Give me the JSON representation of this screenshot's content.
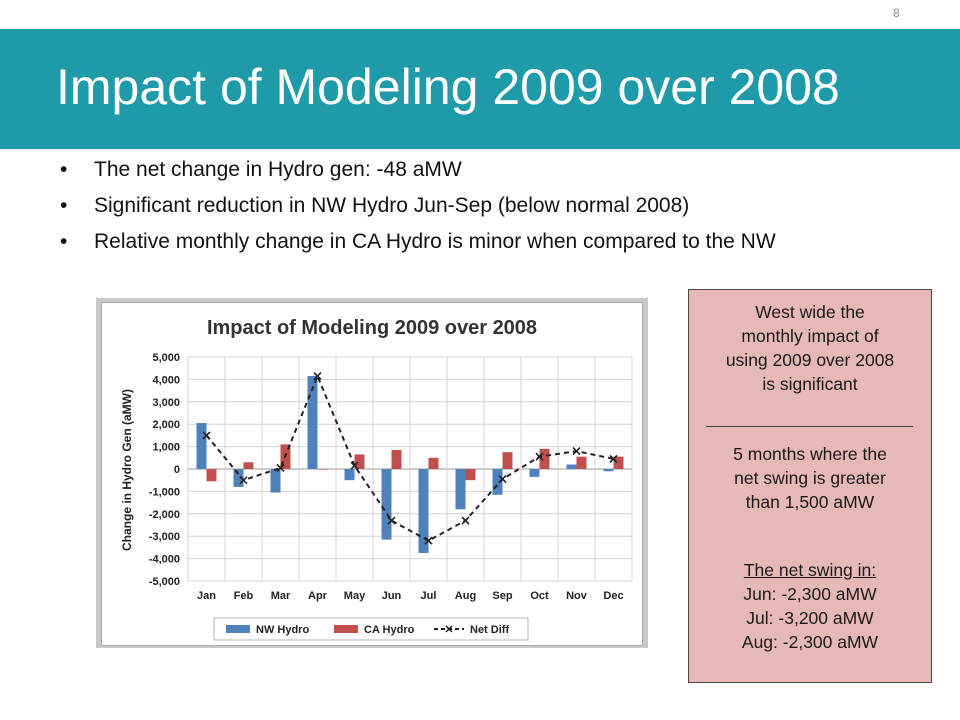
{
  "slide": {
    "page_number": "8",
    "title": "Impact of Modeling 2009 over 2008",
    "bullets": [
      "The net change in Hydro gen: -48 aMW",
      "Significant reduction in NW Hydro Jun-Sep (below normal 2008)",
      "Relative monthly change in CA Hydro is minor when compared to the NW"
    ]
  },
  "note": {
    "paragraph1": [
      "West wide the",
      "monthly impact of",
      "using 2009 over 2008",
      "is significant"
    ],
    "paragraph2": [
      "5 months where the",
      "net swing is greater",
      "than 1,500 aMW"
    ],
    "heading": "The net swing in:",
    "swings": [
      "Jun: -2,300 aMW",
      "Jul: -3,200 aMW",
      "Aug: -2,300 aMW"
    ]
  },
  "colors": {
    "title_band": "#1f9aa8",
    "nw_hydro": "#4f81bd",
    "ca_hydro": "#c0504d",
    "net_diff": "#222222",
    "note_bg": "#e6b8b7"
  },
  "chart_data": {
    "type": "bar",
    "title": "Impact of Modeling 2009 over 2008",
    "ylabel": "Change in Hydro Gen (aMW)",
    "xlabel": "",
    "ylim": [
      -5000,
      5000
    ],
    "yticks": [
      "5,000",
      "4,000",
      "3,000",
      "2,000",
      "1,000",
      "0",
      "-1,000",
      "-2,000",
      "-3,000",
      "-4,000",
      "-5,000"
    ],
    "grid": true,
    "legend_position": "bottom",
    "categories": [
      "Jan",
      "Feb",
      "Mar",
      "Apr",
      "May",
      "Jun",
      "Jul",
      "Aug",
      "Sep",
      "Oct",
      "Nov",
      "Dec"
    ],
    "series": [
      {
        "name": "NW Hydro",
        "kind": "bar",
        "values": [
          2050,
          -800,
          -1050,
          4150,
          -500,
          -3150,
          -3750,
          -1800,
          -1150,
          -350,
          200,
          -100
        ]
      },
      {
        "name": "CA Hydro",
        "kind": "bar",
        "values": [
          -550,
          300,
          1100,
          0,
          650,
          850,
          500,
          -500,
          750,
          900,
          550,
          550
        ]
      },
      {
        "name": "Net Diff",
        "kind": "line",
        "values": [
          1500,
          -500,
          50,
          4150,
          150,
          -2300,
          -3200,
          -2300,
          -450,
          550,
          800,
          450
        ]
      }
    ]
  }
}
